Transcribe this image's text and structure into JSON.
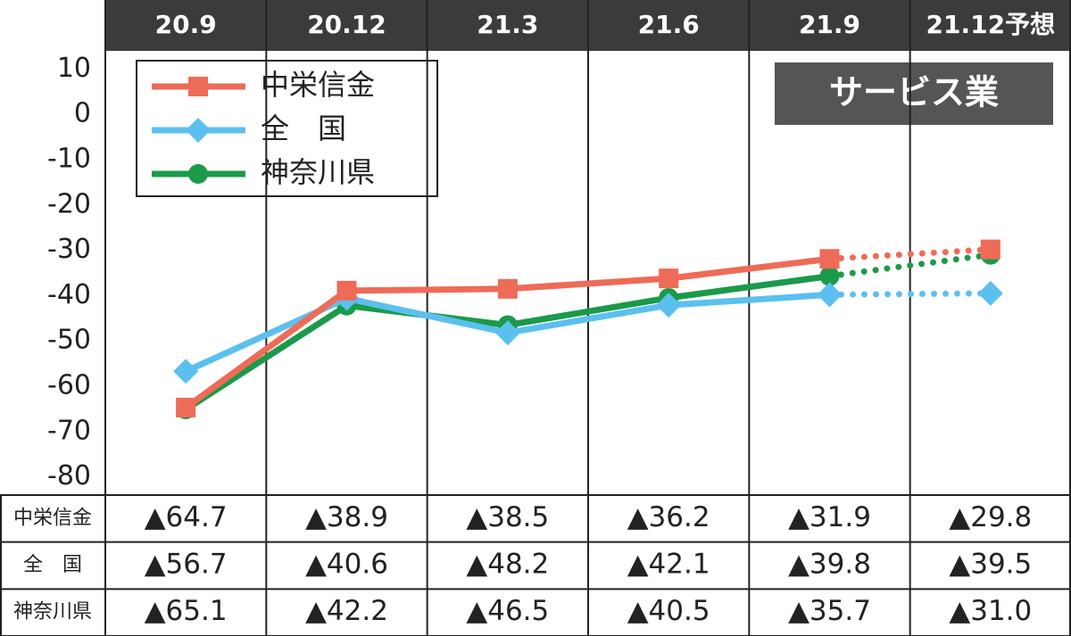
{
  "chart_data": {
    "type": "line",
    "panel_label": "サービス業",
    "categories": [
      "20.9",
      "20.12",
      "21.3",
      "21.6",
      "21.9",
      "21.12予想"
    ],
    "series": [
      {
        "name": "中栄信金",
        "color": "#ee6b57",
        "marker": "square",
        "values": [
          -64.7,
          -38.9,
          -38.5,
          -36.2,
          -31.9,
          -29.8
        ],
        "value_labels": [
          "▲64.7",
          "▲38.9",
          "▲38.5",
          "▲36.2",
          "▲31.9",
          "▲29.8"
        ]
      },
      {
        "name": "全　国",
        "color": "#5bc0ee",
        "marker": "diamond",
        "values": [
          -56.7,
          -40.6,
          -48.2,
          -42.1,
          -39.8,
          -39.5
        ],
        "value_labels": [
          "▲56.7",
          "▲40.6",
          "▲48.2",
          "▲42.1",
          "▲39.8",
          "▲39.5"
        ]
      },
      {
        "name": "神奈川県",
        "color": "#1a9a4a",
        "marker": "circle",
        "values": [
          -65.1,
          -42.2,
          -46.5,
          -40.5,
          -35.7,
          -31.0
        ],
        "value_labels": [
          "▲65.1",
          "▲42.2",
          "▲46.5",
          "▲40.5",
          "▲35.7",
          "▲31.0"
        ]
      }
    ],
    "ylim": [
      -84,
      14
    ],
    "yticks": [
      10,
      0,
      -10,
      -20,
      -30,
      -40,
      -50,
      -60,
      -70,
      -80
    ],
    "dotted_last_segment": true
  }
}
